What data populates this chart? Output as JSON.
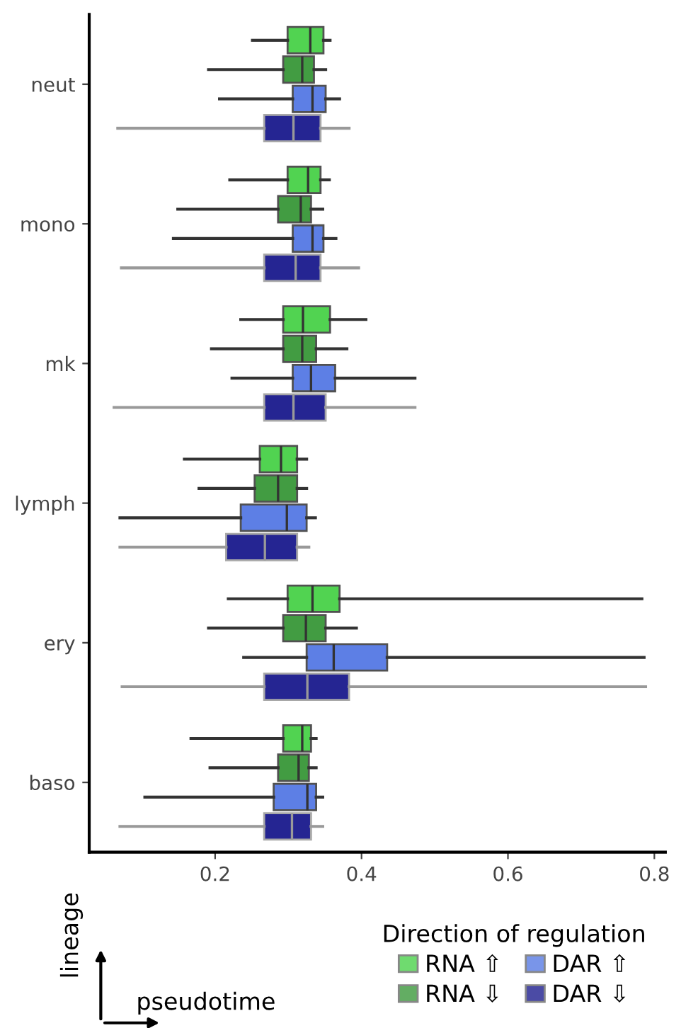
{
  "chart_data": {
    "type": "box",
    "orientation": "horizontal",
    "xlabel": "pseudotime",
    "ylabel": "lineage",
    "legend_title": "Direction of regulation",
    "legend": "bottom",
    "grid": false,
    "categories": [
      "neut",
      "mono",
      "mk",
      "lymph",
      "ery",
      "baso"
    ],
    "xlim": [
      0.028,
      0.815
    ],
    "xticks": [
      0.2,
      0.4,
      0.6,
      0.8
    ],
    "series": [
      {
        "name": "RNA ⇧",
        "color": "#33cc33",
        "boxes": [
          {
            "low": 0.251,
            "q1": 0.299,
            "median": 0.33,
            "q3": 0.348,
            "high": 0.357
          },
          {
            "low": 0.22,
            "q1": 0.299,
            "median": 0.327,
            "q3": 0.344,
            "high": 0.356
          },
          {
            "low": 0.235,
            "q1": 0.293,
            "median": 0.32,
            "q3": 0.357,
            "high": 0.406
          },
          {
            "low": 0.158,
            "q1": 0.261,
            "median": 0.29,
            "q3": 0.312,
            "high": 0.325
          },
          {
            "low": 0.218,
            "q1": 0.299,
            "median": 0.333,
            "q3": 0.37,
            "high": 0.783
          },
          {
            "low": 0.167,
            "q1": 0.293,
            "median": 0.319,
            "q3": 0.331,
            "high": 0.338
          }
        ]
      },
      {
        "name": "RNA ⇩",
        "color": "#228b22",
        "boxes": [
          {
            "low": 0.191,
            "q1": 0.293,
            "median": 0.319,
            "q3": 0.335,
            "high": 0.351
          },
          {
            "low": 0.149,
            "q1": 0.286,
            "median": 0.317,
            "q3": 0.331,
            "high": 0.347
          },
          {
            "low": 0.195,
            "q1": 0.293,
            "median": 0.319,
            "q3": 0.338,
            "high": 0.38
          },
          {
            "low": 0.178,
            "q1": 0.254,
            "median": 0.286,
            "q3": 0.312,
            "high": 0.325
          },
          {
            "low": 0.191,
            "q1": 0.293,
            "median": 0.324,
            "q3": 0.351,
            "high": 0.393
          },
          {
            "low": 0.193,
            "q1": 0.286,
            "median": 0.314,
            "q3": 0.328,
            "high": 0.338
          }
        ]
      },
      {
        "name": "DAR ⇧",
        "color": "#4169e1",
        "boxes": [
          {
            "low": 0.206,
            "q1": 0.306,
            "median": 0.333,
            "q3": 0.351,
            "high": 0.37
          },
          {
            "low": 0.143,
            "q1": 0.306,
            "median": 0.333,
            "q3": 0.348,
            "high": 0.365
          },
          {
            "low": 0.223,
            "q1": 0.306,
            "median": 0.331,
            "q3": 0.364,
            "high": 0.473
          },
          {
            "low": 0.07,
            "q1": 0.235,
            "median": 0.298,
            "q3": 0.325,
            "high": 0.337
          },
          {
            "low": 0.239,
            "q1": 0.325,
            "median": 0.362,
            "q3": 0.435,
            "high": 0.786
          },
          {
            "low": 0.104,
            "q1": 0.28,
            "median": 0.326,
            "q3": 0.338,
            "high": 0.347
          }
        ]
      },
      {
        "name": "DAR ⇩",
        "color": "#000080",
        "boxes": [
          {
            "low": 0.067,
            "q1": 0.267,
            "median": 0.307,
            "q3": 0.344,
            "high": 0.383
          },
          {
            "low": 0.072,
            "q1": 0.267,
            "median": 0.31,
            "q3": 0.344,
            "high": 0.396
          },
          {
            "low": 0.062,
            "q1": 0.267,
            "median": 0.307,
            "q3": 0.351,
            "high": 0.473
          },
          {
            "low": 0.07,
            "q1": 0.215,
            "median": 0.268,
            "q3": 0.312,
            "high": 0.328
          },
          {
            "low": 0.073,
            "q1": 0.267,
            "median": 0.326,
            "q3": 0.383,
            "high": 0.788
          },
          {
            "low": 0.07,
            "q1": 0.267,
            "median": 0.305,
            "q3": 0.331,
            "high": 0.347
          }
        ]
      }
    ]
  }
}
